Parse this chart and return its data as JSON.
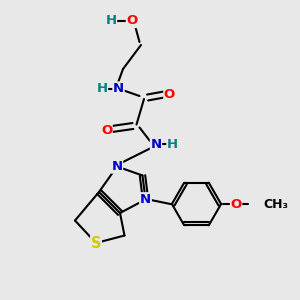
{
  "bg_color": "#e8e8e8",
  "bond_color": "#000000",
  "bond_width": 1.5,
  "atom_colors": {
    "N": "#0000cc",
    "O": "#ff0000",
    "S": "#cccc00",
    "H": "#008080"
  },
  "font_size": 9.5,
  "xlim": [
    0,
    10
  ],
  "ylim": [
    0,
    10
  ]
}
